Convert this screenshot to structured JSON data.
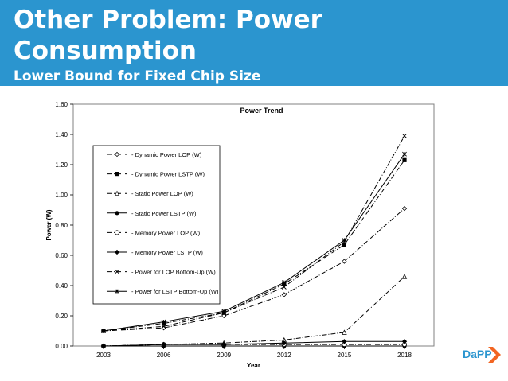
{
  "slide": {
    "title": "Other Problem: Power Consumption",
    "subtitle": "Lower Bound for Fixed Chip Size",
    "logo_text": "DaPP",
    "accent_color": "#2b95cf",
    "logo_chevron_color": "#f26522"
  },
  "chart_data": {
    "type": "line",
    "title": "Power Trend",
    "xlabel": "Year",
    "ylabel": "Power (W)",
    "x": [
      2003,
      2006,
      2009,
      2012,
      2015,
      2018
    ],
    "x_tick_labels": [
      "2003",
      "2006",
      "2009",
      "2012",
      "2015",
      "2018"
    ],
    "ylim": [
      0,
      1.6
    ],
    "y_ticks": [
      0,
      0.2,
      0.4,
      0.6,
      0.8,
      1.0,
      1.2,
      1.4,
      1.6
    ],
    "y_tick_labels": [
      "0.00",
      "0.20",
      "0.40",
      "0.60",
      "0.80",
      "1.00",
      "1.20",
      "1.40",
      "1.60"
    ],
    "grid": false,
    "legend_position": "left",
    "series": [
      {
        "name": "Dynamic Power LOP (W)",
        "values": [
          0.1,
          0.12,
          0.2,
          0.34,
          0.56,
          0.91
        ],
        "marker": "diamond-open",
        "dash": "dashdot"
      },
      {
        "name": "Dynamic Power LSTP (W)",
        "values": [
          0.1,
          0.15,
          0.22,
          0.41,
          0.67,
          1.23
        ],
        "marker": "square-filled",
        "dash": "dashdot"
      },
      {
        "name": "Static Power LOP (W)",
        "values": [
          0.0,
          0.01,
          0.02,
          0.04,
          0.09,
          0.46
        ],
        "marker": "triangle-open",
        "dash": "dashdot"
      },
      {
        "name": "Static Power LSTP (W)",
        "values": [
          0.0,
          0.0,
          0.0,
          0.0,
          0.0,
          0.0
        ],
        "marker": "circle-filled",
        "dash": "solid"
      },
      {
        "name": "Memory Power LOP (W)",
        "values": [
          0.0,
          0.01,
          0.01,
          0.01,
          0.01,
          0.01
        ],
        "marker": "circle-open",
        "dash": "dashdot"
      },
      {
        "name": "Memory Power LSTP (W)",
        "values": [
          0.0,
          0.01,
          0.01,
          0.02,
          0.03,
          0.03
        ],
        "marker": "diamond-filled",
        "dash": "solid"
      },
      {
        "name": "Power for LOP Bottom-Up (W)",
        "values": [
          0.1,
          0.13,
          0.22,
          0.39,
          0.69,
          1.39
        ],
        "marker": "x",
        "dash": "dashdot"
      },
      {
        "name": "Power for LSTP Bottom-Up (W)",
        "values": [
          0.1,
          0.16,
          0.23,
          0.42,
          0.7,
          1.27
        ],
        "marker": "star",
        "dash": "solid"
      }
    ]
  }
}
